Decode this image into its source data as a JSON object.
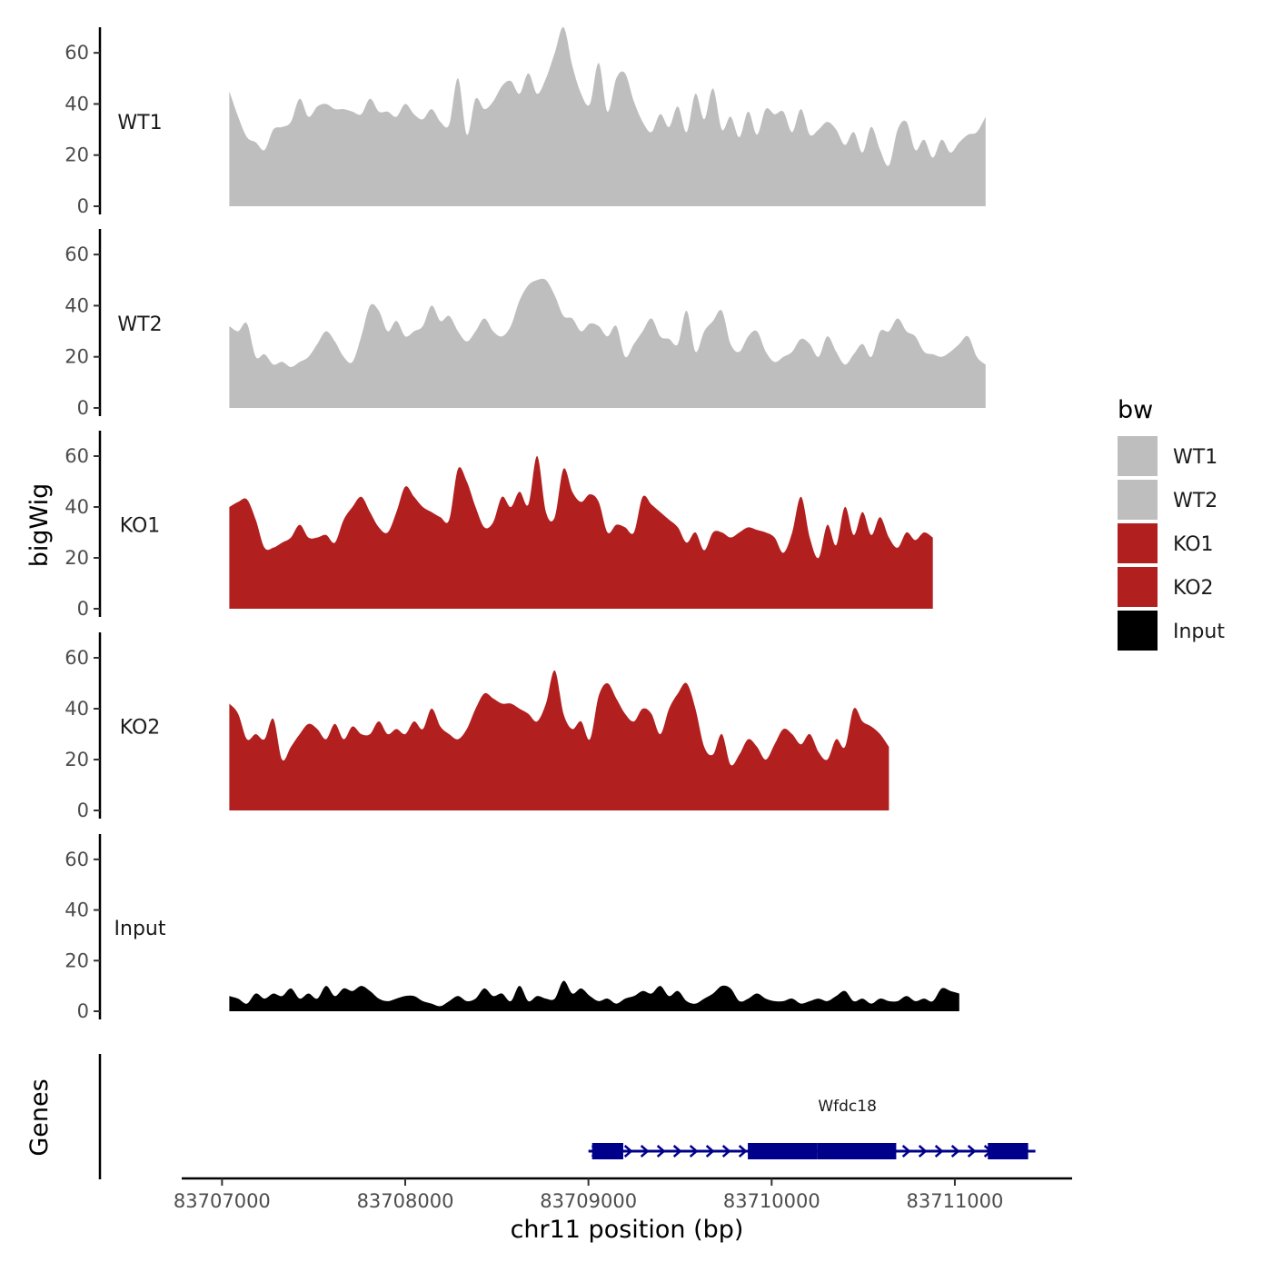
{
  "chart_data": {
    "type": "area",
    "title": "",
    "ylabel": "bigWig",
    "xlabel": "chr11 position (bp)",
    "genes_label": "Genes",
    "xlim": [
      83706780,
      83711640
    ],
    "ylim": [
      0,
      70
    ],
    "y_ticks": [
      0,
      20,
      40,
      60
    ],
    "y_tick_labels": [
      "0",
      "20",
      "40",
      "60"
    ],
    "x_ticks": [
      83707000,
      83708000,
      83709000,
      83710000,
      83711000
    ],
    "x_tick_labels": [
      "83707000",
      "83708000",
      "83709000",
      "83710000",
      "83711000"
    ],
    "x_step": 48,
    "legend": {
      "title": "bw",
      "position": "right",
      "entries": [
        {
          "label": "WT1",
          "color": "#bebebe"
        },
        {
          "label": "WT2",
          "color": "#bebebe"
        },
        {
          "label": "KO1",
          "color": "#b21f1f"
        },
        {
          "label": "KO2",
          "color": "#b21f1f"
        },
        {
          "label": "Input",
          "color": "#000000"
        }
      ]
    },
    "series": [
      {
        "name": "WT1",
        "color": "#bebebe",
        "x_start": 83707040,
        "values": [
          45,
          35,
          27,
          25,
          22,
          30,
          31,
          33,
          42,
          35,
          39,
          40,
          38,
          38,
          37,
          36,
          42,
          37,
          37,
          35,
          40,
          36,
          34,
          38,
          33,
          32,
          50,
          28,
          42,
          38,
          41,
          47,
          49,
          44,
          52,
          44,
          50,
          60,
          70,
          55,
          44,
          40,
          56,
          37,
          50,
          52,
          41,
          33,
          29,
          36,
          31,
          39,
          29,
          44,
          34,
          46,
          30,
          35,
          27,
          37,
          28,
          38,
          36,
          37,
          29,
          38,
          28,
          30,
          33,
          30,
          24,
          29,
          21,
          31,
          22,
          16,
          30,
          33,
          22,
          26,
          19,
          26,
          21,
          25,
          28,
          29,
          35
        ]
      },
      {
        "name": "WT2",
        "color": "#bebebe",
        "x_start": 83707040,
        "values": [
          32,
          30,
          33,
          20,
          21,
          17,
          18,
          16,
          18,
          20,
          25,
          30,
          26,
          20,
          18,
          28,
          40,
          38,
          30,
          34,
          28,
          30,
          32,
          40,
          34,
          36,
          30,
          26,
          30,
          35,
          30,
          28,
          32,
          42,
          48,
          50,
          50,
          44,
          36,
          35,
          30,
          33,
          32,
          28,
          32,
          20,
          25,
          30,
          35,
          28,
          27,
          25,
          38,
          22,
          30,
          34,
          38,
          25,
          22,
          28,
          30,
          22,
          18,
          20,
          22,
          27,
          25,
          20,
          28,
          22,
          17,
          21,
          25,
          20,
          30,
          30,
          35,
          30,
          28,
          22,
          21,
          20,
          22,
          25,
          28,
          20,
          17
        ]
      },
      {
        "name": "KO1",
        "color": "#b21f1f",
        "x_start": 83707040,
        "values": [
          40,
          42,
          43,
          35,
          24,
          24,
          26,
          28,
          33,
          28,
          28,
          29,
          26,
          35,
          40,
          44,
          38,
          32,
          30,
          38,
          48,
          44,
          40,
          38,
          36,
          35,
          55,
          50,
          40,
          32,
          34,
          44,
          40,
          46,
          41,
          60,
          38,
          36,
          55,
          46,
          42,
          45,
          42,
          30,
          33,
          32,
          30,
          44,
          41,
          38,
          35,
          32,
          26,
          30,
          23,
          30,
          30,
          28,
          30,
          32,
          31,
          30,
          28,
          22,
          30,
          44,
          28,
          20,
          33,
          25,
          40,
          29,
          38,
          29,
          36,
          28,
          24,
          30,
          27,
          30,
          28
        ]
      },
      {
        "name": "KO2",
        "color": "#b21f1f",
        "x_start": 83707040,
        "values": [
          42,
          38,
          28,
          30,
          28,
          36,
          20,
          25,
          30,
          34,
          32,
          28,
          34,
          28,
          33,
          30,
          30,
          35,
          30,
          32,
          30,
          35,
          32,
          40,
          33,
          30,
          28,
          32,
          40,
          46,
          44,
          42,
          42,
          40,
          38,
          35,
          42,
          55,
          38,
          32,
          35,
          28,
          45,
          50,
          44,
          38,
          35,
          40,
          38,
          30,
          40,
          46,
          50,
          40,
          25,
          22,
          30,
          18,
          22,
          28,
          25,
          20,
          26,
          32,
          30,
          26,
          30,
          23,
          20,
          28,
          25,
          40,
          35,
          33,
          30,
          25
        ]
      },
      {
        "name": "Input",
        "color": "#000000",
        "x_start": 83707040,
        "values": [
          6,
          5,
          3,
          7,
          5,
          7,
          6,
          9,
          5,
          7,
          5,
          10,
          6,
          9,
          8,
          10,
          8,
          5,
          4,
          5,
          6,
          6,
          4,
          3,
          2,
          4,
          6,
          4,
          5,
          9,
          6,
          7,
          4,
          10,
          4,
          6,
          5,
          5,
          12,
          7,
          9,
          6,
          4,
          5,
          3,
          5,
          6,
          8,
          7,
          10,
          6,
          8,
          4,
          3,
          5,
          7,
          10,
          9,
          4,
          5,
          7,
          5,
          4,
          4,
          5,
          3,
          4,
          5,
          4,
          6,
          8,
          4,
          5,
          3,
          5,
          4,
          4,
          6,
          4,
          5,
          4,
          9,
          8,
          7
        ]
      }
    ],
    "genes": [
      {
        "name": "Wfdc18",
        "strand": "+",
        "start": 83709000,
        "end": 83711400,
        "blocks": [
          {
            "start": 83709020,
            "end": 83709190,
            "kind": "exon"
          },
          {
            "start": 83709870,
            "end": 83710250,
            "kind": "exon"
          },
          {
            "start": 83710250,
            "end": 83710680,
            "kind": "exon"
          },
          {
            "start": 83711180,
            "end": 83711400,
            "kind": "exon"
          }
        ],
        "color": "#00008b"
      }
    ]
  }
}
